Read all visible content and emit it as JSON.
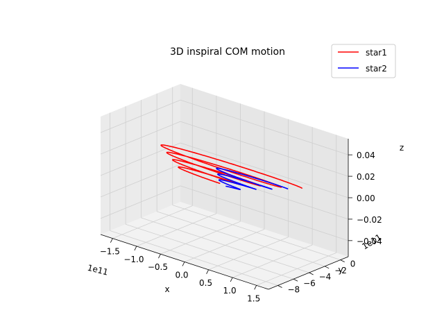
{
  "chart_data": {
    "type": "line3d",
    "title": "3D inspiral COM motion",
    "xlabel": "x",
    "ylabel": "y",
    "zlabel": "z",
    "x_offset_text": "1e11",
    "y_offset_text": "1e11",
    "xlim": [
      -1.75,
      1.75
    ],
    "ylim": [
      -9.2,
      1.0
    ],
    "zlim": [
      -0.055,
      0.055
    ],
    "x_ticks": [
      -1.5,
      -1.0,
      -0.5,
      0.0,
      0.5,
      1.0,
      1.5
    ],
    "x_tick_labels": [
      "−1.5",
      "−1.0",
      "−0.5",
      "0.0",
      "0.5",
      "1.0",
      "1.5"
    ],
    "y_ticks": [
      0,
      -2,
      -4,
      -6,
      -8
    ],
    "y_tick_labels": [
      "0",
      "−2",
      "−4",
      "−6",
      "−8"
    ],
    "z_ticks": [
      0.04,
      0.02,
      0.0,
      -0.02,
      -0.04
    ],
    "z_tick_labels": [
      "0.04",
      "0.02",
      "0.00",
      "−0.02",
      "−0.04"
    ],
    "grid": true,
    "legend_position": "top-right",
    "series": [
      {
        "name": "star1",
        "color": "#ff0000",
        "orbit": {
          "amp_start": 1.5,
          "amp_end": 0.4,
          "y_start": 0.0,
          "y_end": -3.8,
          "turns": 4,
          "center_x": -0.55,
          "z": 0.0
        }
      },
      {
        "name": "star2",
        "color": "#0000ff",
        "orbit": {
          "amp_start": 0.75,
          "amp_end": 0.16,
          "y_start": -0.9,
          "y_end": -4.0,
          "turns": 3.3,
          "center_x": 0.05,
          "z": 0.0
        }
      }
    ]
  }
}
